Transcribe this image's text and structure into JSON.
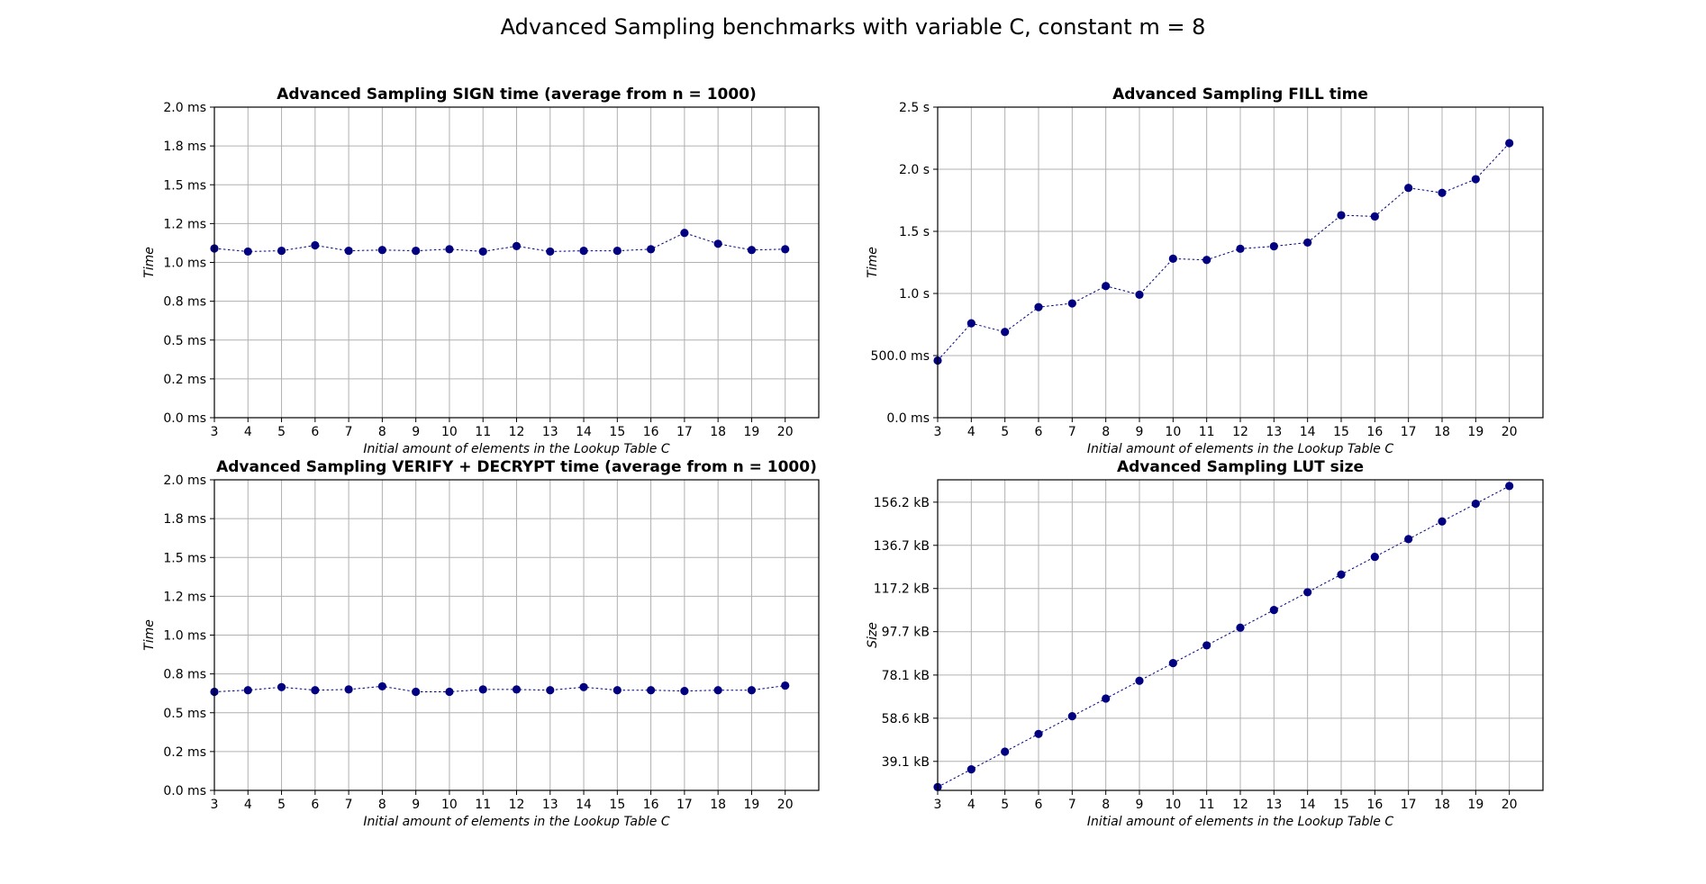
{
  "figure": {
    "title": "Advanced Sampling benchmarks with variable C, constant m = 8"
  },
  "chart_data": [
    {
      "type": "line",
      "title": "Advanced Sampling SIGN time (average from n = 1000)",
      "xlabel": "Initial amount of elements in the Lookup Table C",
      "ylabel": "Time",
      "x": [
        3,
        4,
        5,
        6,
        7,
        8,
        9,
        10,
        11,
        12,
        13,
        14,
        15,
        16,
        17,
        18,
        19,
        20
      ],
      "series": [
        {
          "name": "",
          "values": [
            1.09,
            1.07,
            1.075,
            1.11,
            1.075,
            1.08,
            1.075,
            1.085,
            1.07,
            1.105,
            1.07,
            1.075,
            1.075,
            1.085,
            1.19,
            1.12,
            1.08,
            1.085
          ]
        }
      ],
      "xlim": [
        3,
        21
      ],
      "ylim": [
        0,
        2.0
      ],
      "yticks": [
        0,
        0.25,
        0.5,
        0.75,
        1.0,
        1.25,
        1.5,
        1.75,
        2.0
      ],
      "ytick_labels": [
        "0.0 ms",
        "0.2 ms",
        "0.5 ms",
        "0.8 ms",
        "1.0 ms",
        "1.2 ms",
        "1.5 ms",
        "1.8 ms",
        "2.0 ms"
      ],
      "grid": true,
      "color": "#000080"
    },
    {
      "type": "line",
      "title": "Advanced Sampling FILL time",
      "xlabel": "Initial amount of elements in the Lookup Table C",
      "ylabel": "Time",
      "x": [
        3,
        4,
        5,
        6,
        7,
        8,
        9,
        10,
        11,
        12,
        13,
        14,
        15,
        16,
        17,
        18,
        19,
        20
      ],
      "series": [
        {
          "name": "",
          "values": [
            0.46,
            0.76,
            0.69,
            0.89,
            0.92,
            1.06,
            0.99,
            1.28,
            1.27,
            1.36,
            1.38,
            1.41,
            1.63,
            1.62,
            1.85,
            1.81,
            1.92,
            2.21
          ]
        }
      ],
      "xlim": [
        3,
        21
      ],
      "ylim": [
        0,
        2.5
      ],
      "yticks": [
        0,
        0.5,
        1.0,
        1.5,
        2.0,
        2.5
      ],
      "ytick_labels": [
        "0.0 ms",
        "500.0 ms",
        "1.0 s",
        "1.5 s",
        "2.0 s",
        "2.5 s"
      ],
      "grid": true,
      "color": "#000080"
    },
    {
      "type": "line",
      "title": "Advanced Sampling VERIFY + DECRYPT time (average from n = 1000)",
      "xlabel": "Initial amount of elements in the Lookup Table C",
      "ylabel": "Time",
      "x": [
        3,
        4,
        5,
        6,
        7,
        8,
        9,
        10,
        11,
        12,
        13,
        14,
        15,
        16,
        17,
        18,
        19,
        20
      ],
      "series": [
        {
          "name": "",
          "values": [
            0.635,
            0.645,
            0.665,
            0.645,
            0.65,
            0.67,
            0.635,
            0.635,
            0.65,
            0.65,
            0.645,
            0.665,
            0.645,
            0.645,
            0.64,
            0.645,
            0.645,
            0.675
          ]
        }
      ],
      "xlim": [
        3,
        21
      ],
      "ylim": [
        0,
        2.0
      ],
      "yticks": [
        0,
        0.25,
        0.5,
        0.75,
        1.0,
        1.25,
        1.5,
        1.75,
        2.0
      ],
      "ytick_labels": [
        "0.0 ms",
        "0.2 ms",
        "0.5 ms",
        "0.8 ms",
        "1.0 ms",
        "1.2 ms",
        "1.5 ms",
        "1.8 ms",
        "2.0 ms"
      ],
      "grid": true,
      "color": "#000080"
    },
    {
      "type": "line",
      "title": "Advanced Sampling LUT size",
      "xlabel": "Initial amount of elements in the Lookup Table C",
      "ylabel": "Size",
      "x": [
        3,
        4,
        5,
        6,
        7,
        8,
        9,
        10,
        11,
        12,
        13,
        14,
        15,
        16,
        17,
        18,
        19,
        20
      ],
      "series": [
        {
          "name": "",
          "values": [
            27.5,
            35.5,
            43.5,
            51.5,
            59.5,
            67.5,
            75.5,
            83.5,
            91.5,
            99.5,
            107.5,
            115.5,
            123.5,
            131.5,
            139.5,
            147.5,
            155.5,
            163.5
          ]
        }
      ],
      "xlim": [
        3,
        21
      ],
      "ylim": [
        26,
        166.3
      ],
      "yticks": [
        39.1,
        58.6,
        78.1,
        97.7,
        117.2,
        136.7,
        156.2
      ],
      "ytick_labels": [
        "39.1 kB",
        "58.6 kB",
        "78.1 kB",
        "97.7 kB",
        "117.2 kB",
        "136.7 kB",
        "156.2 kB"
      ],
      "grid": true,
      "color": "#000080"
    }
  ]
}
